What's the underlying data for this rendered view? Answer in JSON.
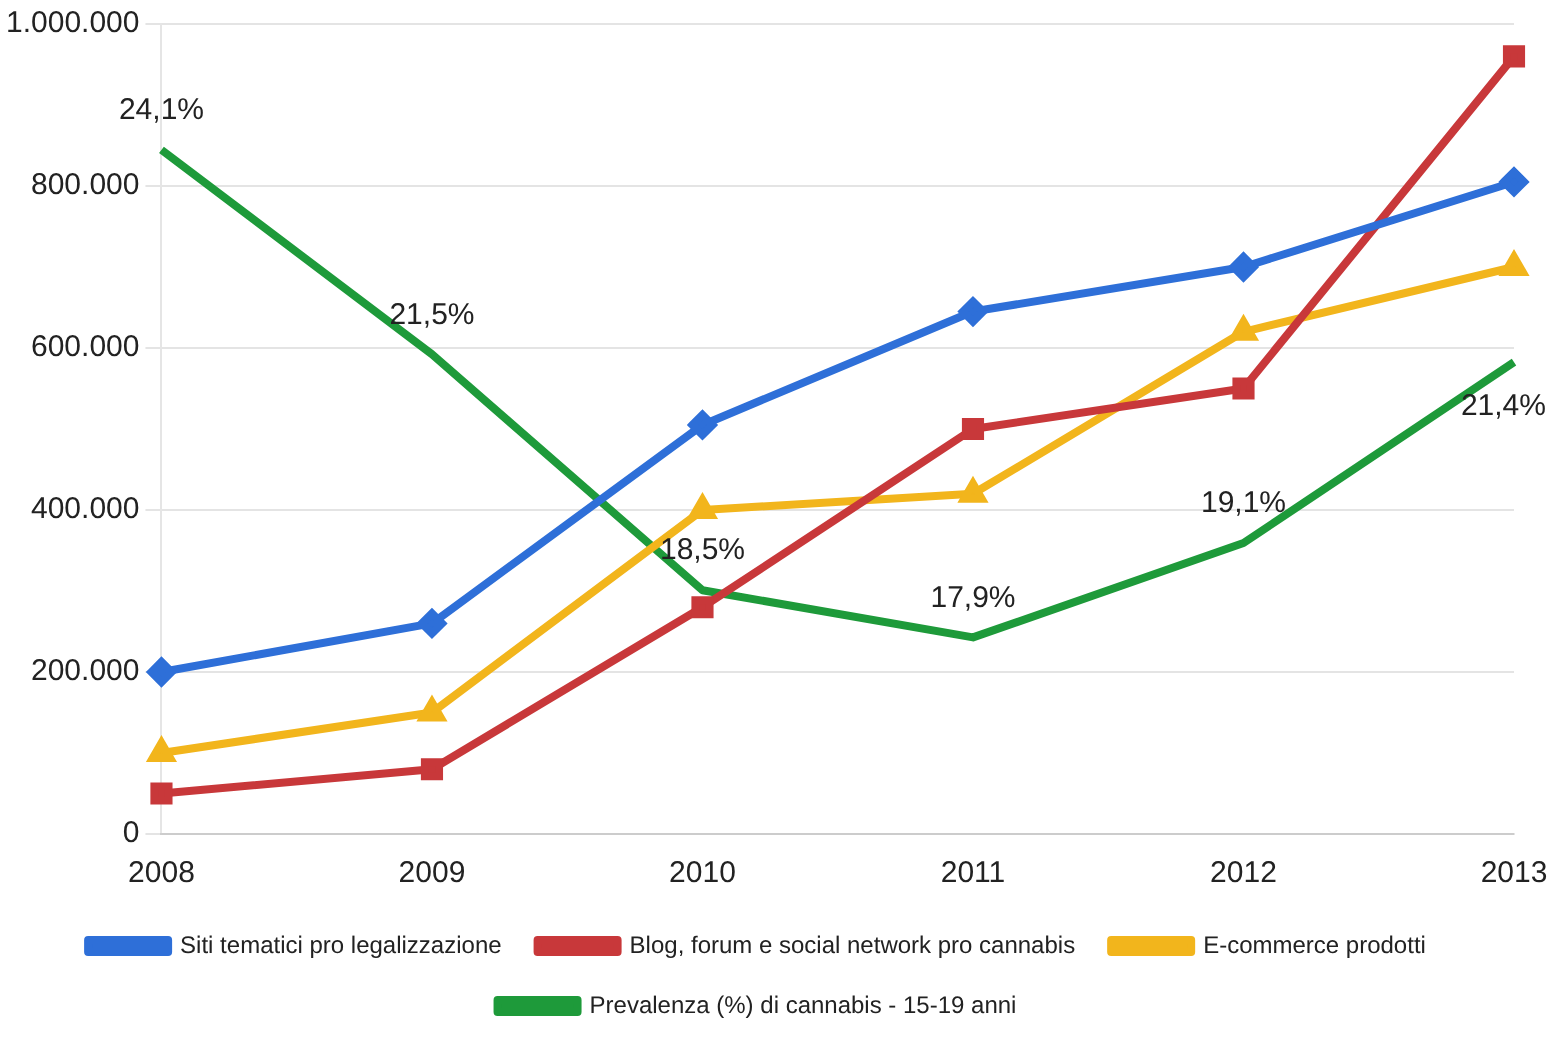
{
  "chart_data": {
    "type": "line",
    "categories": [
      "2008",
      "2009",
      "2010",
      "2011",
      "2012",
      "2013"
    ],
    "ylim": [
      0,
      1000000
    ],
    "yticks": [
      {
        "value": 0,
        "label": "0"
      },
      {
        "value": 200000,
        "label": "200.000"
      },
      {
        "value": 400000,
        "label": "400.000"
      },
      {
        "value": 600000,
        "label": "600.000"
      },
      {
        "value": 800000,
        "label": "800.000"
      },
      {
        "value": 1000000,
        "label": "1.000.000"
      }
    ],
    "y2lim": [
      15.4,
      25.7
    ],
    "grid": "y",
    "legend": "bottom",
    "series": [
      {
        "name": "Siti tematici pro legalizzazione",
        "color": "#2e6fd8",
        "marker": "diamond",
        "values": [
          200000,
          260000,
          505000,
          645000,
          700000,
          805000
        ]
      },
      {
        "name": "Blog, forum e social network pro cannabis",
        "color": "#c8383a",
        "marker": "square",
        "values": [
          50000,
          80000,
          280000,
          500000,
          550000,
          960000
        ]
      },
      {
        "name": "E-commerce prodotti",
        "color": "#f2b51c",
        "marker": "triangle",
        "values": [
          100000,
          150000,
          400000,
          420000,
          620000,
          700000
        ]
      },
      {
        "name": "Prevalenza (%) di cannabis - 15-19 anni",
        "color": "#1e9a3a",
        "marker": "none",
        "axis": "y2",
        "values": [
          24.1,
          21.5,
          18.5,
          17.9,
          19.1,
          21.4
        ],
        "value_labels": [
          "24,1%",
          "21,5%",
          "18,5%",
          "17,9%",
          "19,1%",
          "21,4%"
        ]
      }
    ]
  }
}
